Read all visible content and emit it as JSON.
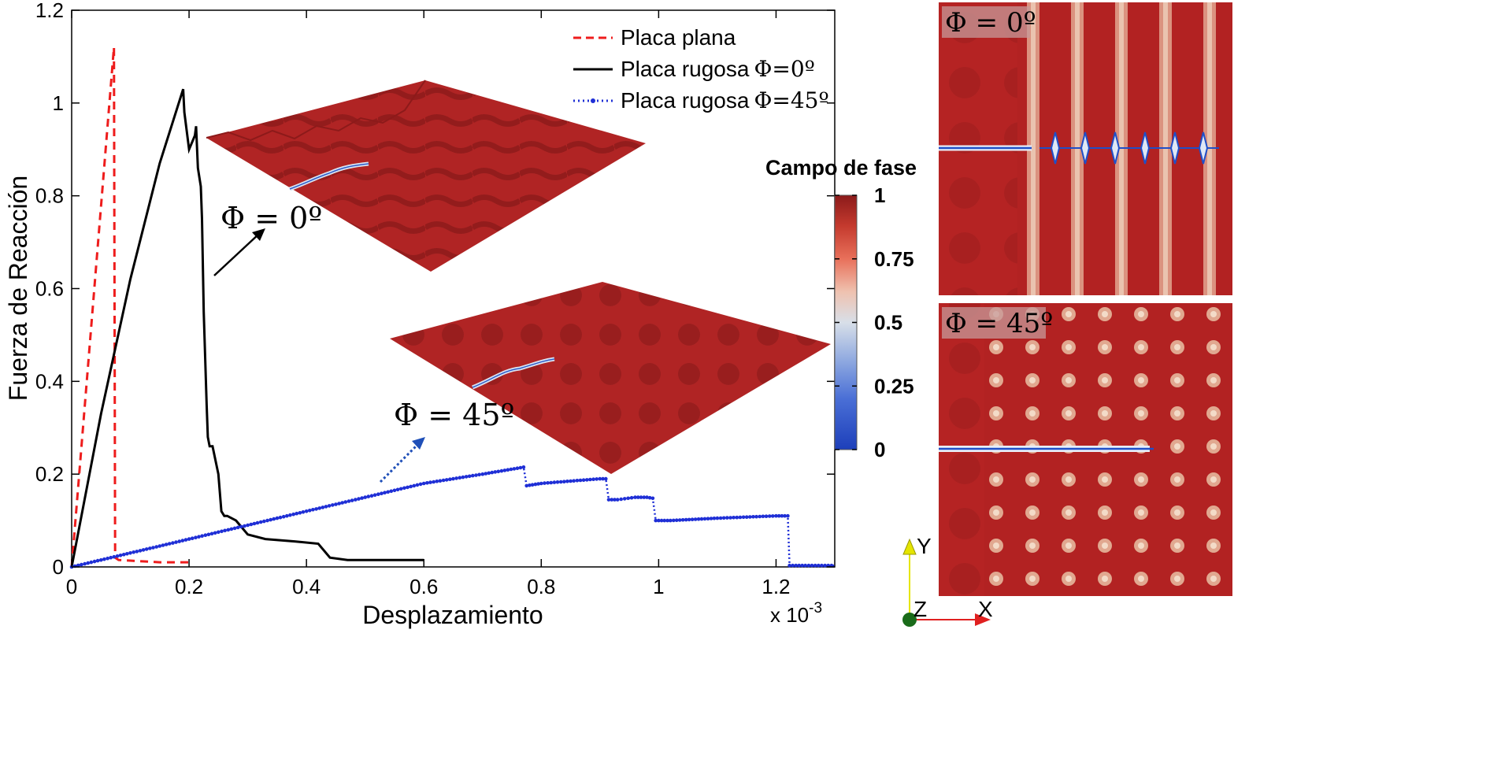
{
  "chart_data": {
    "type": "line",
    "xlabel": "Desplazamiento",
    "ylabel": "Fuerza de Reacción",
    "x_multiplier": "x 10",
    "x_multiplier_exp": "-3",
    "xlim": [
      0,
      1.3
    ],
    "ylim": [
      0,
      1.2
    ],
    "xticks": [
      "0",
      "0.2",
      "0.4",
      "0.6",
      "0.8",
      "1",
      "1.2"
    ],
    "xtick_values": [
      0,
      0.2,
      0.4,
      0.6,
      0.8,
      1.0,
      1.2
    ],
    "yticks": [
      "0",
      "0.2",
      "0.4",
      "0.6",
      "0.8",
      "1",
      "1.2"
    ],
    "ytick_values": [
      0,
      0.2,
      0.4,
      0.6,
      0.8,
      1.0,
      1.2
    ],
    "grid": false,
    "legend_position": "top-right",
    "series": [
      {
        "name": "Placa plana",
        "style": "dashed",
        "color": "#ee1c1c",
        "x": [
          0,
          0.072,
          0.074,
          0.08,
          0.15,
          0.2
        ],
        "y": [
          0,
          1.12,
          0.02,
          0.015,
          0.01,
          0.01
        ]
      },
      {
        "name": "Placa rugosa",
        "name_sym": "Φ=0º",
        "style": "solid",
        "color": "#000000",
        "x": [
          0,
          0.05,
          0.1,
          0.15,
          0.19,
          0.192,
          0.2,
          0.21,
          0.212,
          0.215,
          0.22,
          0.222,
          0.225,
          0.23,
          0.232,
          0.235,
          0.24,
          0.25,
          0.255,
          0.26,
          0.265,
          0.28,
          0.3,
          0.33,
          0.38,
          0.42,
          0.44,
          0.47,
          0.5,
          0.6
        ],
        "y": [
          0,
          0.33,
          0.62,
          0.87,
          1.03,
          0.98,
          0.9,
          0.93,
          0.95,
          0.86,
          0.82,
          0.75,
          0.55,
          0.35,
          0.28,
          0.26,
          0.26,
          0.2,
          0.12,
          0.11,
          0.11,
          0.1,
          0.07,
          0.06,
          0.055,
          0.05,
          0.02,
          0.015,
          0.015,
          0.015
        ]
      },
      {
        "name": "Placa rugosa",
        "name_sym": "Φ=45º",
        "style": "dotted",
        "color": "#1f2fd6",
        "x": [
          0,
          0.1,
          0.2,
          0.3,
          0.4,
          0.5,
          0.6,
          0.7,
          0.77,
          0.775,
          0.8,
          0.85,
          0.9,
          0.91,
          0.915,
          0.93,
          0.96,
          0.98,
          0.99,
          0.995,
          1.02,
          1.1,
          1.2,
          1.22,
          1.223,
          1.25,
          1.3
        ],
        "y": [
          0,
          0.03,
          0.06,
          0.09,
          0.12,
          0.15,
          0.18,
          0.2,
          0.215,
          0.175,
          0.18,
          0.185,
          0.19,
          0.19,
          0.145,
          0.145,
          0.15,
          0.15,
          0.148,
          0.1,
          0.1,
          0.105,
          0.11,
          0.11,
          0.003,
          0.003,
          0.003
        ]
      }
    ],
    "annotations": [
      "Φ = 0º",
      "Φ = 45º"
    ],
    "colorbar": {
      "title": "Campo de fase",
      "ticks": [
        "1",
        "0.75",
        "0.5",
        "0.25",
        "0"
      ],
      "tick_values": [
        1,
        0.75,
        0.5,
        0.25,
        0
      ],
      "colors": [
        "#8b1a1a",
        "#c43a2e",
        "#e8705a",
        "#efc2b0",
        "#d8dfe8",
        "#8fa9e0",
        "#4a6fd6",
        "#1d3fba"
      ]
    },
    "inset_labels": [
      "Φ = 0º",
      "Φ = 45º"
    ],
    "axes_triad": {
      "y": "Y",
      "z": "Z",
      "x": "X"
    }
  }
}
